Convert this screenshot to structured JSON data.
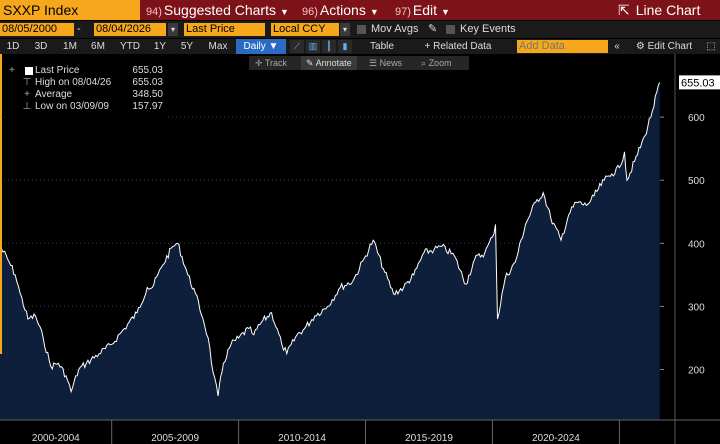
{
  "topbar": {
    "ticker": "SXXP Index",
    "menus": [
      {
        "num": "94)",
        "label": "Suggested Charts"
      },
      {
        "num": "96)",
        "label": "Actions"
      },
      {
        "num": "97)",
        "label": "Edit"
      }
    ],
    "chart_type": "Line Chart"
  },
  "controls": {
    "start_date": "08/05/2000",
    "end_date": "08/04/2026",
    "field": "Last Price",
    "currency": "Local CCY",
    "mov_avgs": "Mov Avgs",
    "key_events": "Key Events"
  },
  "periods": {
    "items": [
      "1D",
      "3D",
      "1M",
      "6M",
      "YTD",
      "1Y",
      "5Y",
      "Max"
    ],
    "frequency": "Daily",
    "table": "Table",
    "related_data": "+ Related Data",
    "add_data_placeholder": "Add Data",
    "edit_chart": "Edit Chart"
  },
  "chart_toolbar": [
    "Track",
    "Annotate",
    "News",
    "Zoom"
  ],
  "legend": {
    "last_price_label": "Last Price",
    "last_price_value": "655.03",
    "high_label": "High on 08/04/26",
    "high_value": "655.03",
    "average_label": "Average",
    "average_value": "348.50",
    "low_label": "Low on 03/09/09",
    "low_value": "157.97"
  },
  "colors": {
    "accent": "#f7a71b",
    "header": "#7d1219",
    "area_fill": "#0d1f3a",
    "line": "#ffffff",
    "selected": "#2a6cc4"
  },
  "chart_data": {
    "type": "area",
    "title": "",
    "xlabel": "",
    "ylabel": "",
    "current_value_label": "655.03",
    "x_tick_labels": [
      "2000-2004",
      "2005-2009",
      "2010-2014",
      "2015-2019",
      "2020-2024"
    ],
    "x_range": [
      2000.6,
      2026.6
    ],
    "ylim": [
      120,
      700
    ],
    "y_ticks": [
      200,
      300,
      400,
      500,
      600
    ],
    "grid": true,
    "series": [
      {
        "x": [
          2000.6,
          2000.9,
          2001.2,
          2001.4,
          2001.7,
          2002.0,
          2002.3,
          2002.6,
          2002.9,
          2003.2,
          2003.4,
          2003.7,
          2004.0,
          2004.5,
          2005.0,
          2005.5,
          2006.0,
          2006.4,
          2006.6,
          2007.0,
          2007.4,
          2007.6,
          2008.0,
          2008.3,
          2008.6,
          2008.8,
          2009.0,
          2009.19,
          2009.4,
          2009.7,
          2010.0,
          2010.4,
          2010.6,
          2010.9,
          2011.3,
          2011.7,
          2011.9,
          2012.3,
          2012.6,
          2013.0,
          2013.5,
          2014.0,
          2014.5,
          2015.0,
          2015.3,
          2015.7,
          2016.1,
          2016.5,
          2016.9,
          2017.3,
          2017.7,
          2018.0,
          2018.5,
          2018.95,
          2019.3,
          2019.7,
          2020.0,
          2020.12,
          2020.2,
          2020.5,
          2020.9,
          2021.3,
          2021.7,
          2022.0,
          2022.3,
          2022.7,
          2023.0,
          2023.3,
          2023.7,
          2024.0,
          2024.4,
          2024.7,
          2025.0,
          2025.2,
          2025.3,
          2025.6,
          2026.0,
          2026.3,
          2026.59
        ],
        "y": [
          395,
          375,
          350,
          320,
          280,
          285,
          250,
          205,
          210,
          190,
          165,
          200,
          210,
          225,
          240,
          265,
          290,
          330,
          330,
          365,
          395,
          400,
          350,
          320,
          280,
          250,
          195,
          158,
          210,
          240,
          250,
          265,
          255,
          275,
          290,
          240,
          225,
          255,
          265,
          285,
          300,
          330,
          340,
          380,
          405,
          360,
          320,
          330,
          350,
          385,
          390,
          395,
          380,
          335,
          375,
          385,
          410,
          430,
          280,
          345,
          370,
          430,
          465,
          480,
          440,
          405,
          445,
          465,
          460,
          475,
          500,
          510,
          520,
          545,
          500,
          530,
          570,
          610,
          655.03
        ]
      }
    ]
  }
}
